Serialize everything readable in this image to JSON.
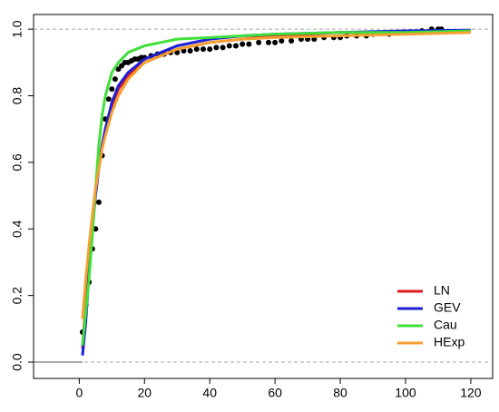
{
  "chart_data": {
    "type": "line",
    "xlim": [
      -14,
      126.7
    ],
    "ylim": [
      -0.049,
      1.044
    ],
    "xticks": [
      0,
      20,
      40,
      60,
      80,
      100,
      120
    ],
    "yticks": [
      {
        "value": 0,
        "label": "0.0"
      },
      0.2,
      0.4,
      0.6,
      0.8,
      {
        "value": 1,
        "label": "1.0"
      }
    ],
    "hlines": [
      0,
      1
    ],
    "legend": "bottomright",
    "x": [
      1,
      2,
      3,
      4,
      5,
      6,
      7,
      8,
      10,
      12,
      15,
      20,
      25,
      30,
      40,
      50,
      60,
      80,
      100,
      120
    ],
    "series": [
      {
        "name": "LN",
        "color": "#e0191c",
        "values": [
          0.04,
          0.18,
          0.32,
          0.43,
          0.52,
          0.59,
          0.65,
          0.7,
          0.77,
          0.82,
          0.86,
          0.9,
          0.92,
          0.94,
          0.96,
          0.97,
          0.98,
          0.99,
          0.99,
          0.995
        ]
      },
      {
        "name": "GEV",
        "color": "#1d1fd6",
        "values": [
          0.02,
          0.12,
          0.27,
          0.4,
          0.5,
          0.58,
          0.65,
          0.7,
          0.78,
          0.83,
          0.87,
          0.91,
          0.93,
          0.95,
          0.97,
          0.98,
          0.985,
          0.99,
          0.995,
          0.997
        ]
      },
      {
        "name": "Cau",
        "color": "#3fe03a",
        "values": [
          0.05,
          0.15,
          0.25,
          0.38,
          0.52,
          0.65,
          0.74,
          0.8,
          0.87,
          0.9,
          0.93,
          0.95,
          0.96,
          0.97,
          0.975,
          0.98,
          0.985,
          0.99,
          0.99,
          0.995
        ]
      },
      {
        "name": "HExp",
        "color": "#f5a030",
        "values": [
          0.13,
          0.25,
          0.35,
          0.44,
          0.52,
          0.58,
          0.64,
          0.68,
          0.75,
          0.8,
          0.85,
          0.9,
          0.92,
          0.94,
          0.96,
          0.97,
          0.975,
          0.98,
          0.985,
          0.99
        ]
      }
    ],
    "empirical": {
      "color": "#000000",
      "x": [
        1,
        2,
        3,
        4,
        5,
        6,
        7,
        8,
        9,
        10,
        11,
        12,
        13,
        14,
        15,
        16,
        17,
        18,
        19,
        20,
        22,
        24,
        26,
        28,
        30,
        32,
        34,
        36,
        38,
        40,
        42,
        44,
        46,
        48,
        50,
        52,
        55,
        58,
        60,
        62,
        65,
        68,
        70,
        72,
        75,
        78,
        80,
        82,
        85,
        88,
        90,
        95,
        100,
        105,
        108,
        110,
        111
      ],
      "values": [
        0.09,
        0.17,
        0.24,
        0.34,
        0.4,
        0.48,
        0.62,
        0.73,
        0.79,
        0.82,
        0.85,
        0.88,
        0.89,
        0.9,
        0.9,
        0.905,
        0.91,
        0.91,
        0.915,
        0.915,
        0.92,
        0.925,
        0.925,
        0.93,
        0.93,
        0.935,
        0.935,
        0.94,
        0.94,
        0.94,
        0.945,
        0.945,
        0.95,
        0.95,
        0.955,
        0.955,
        0.96,
        0.96,
        0.96,
        0.965,
        0.965,
        0.97,
        0.97,
        0.97,
        0.975,
        0.975,
        0.975,
        0.98,
        0.98,
        0.98,
        0.985,
        0.985,
        0.99,
        0.995,
        1.0,
        1.0,
        1.0
      ]
    }
  }
}
